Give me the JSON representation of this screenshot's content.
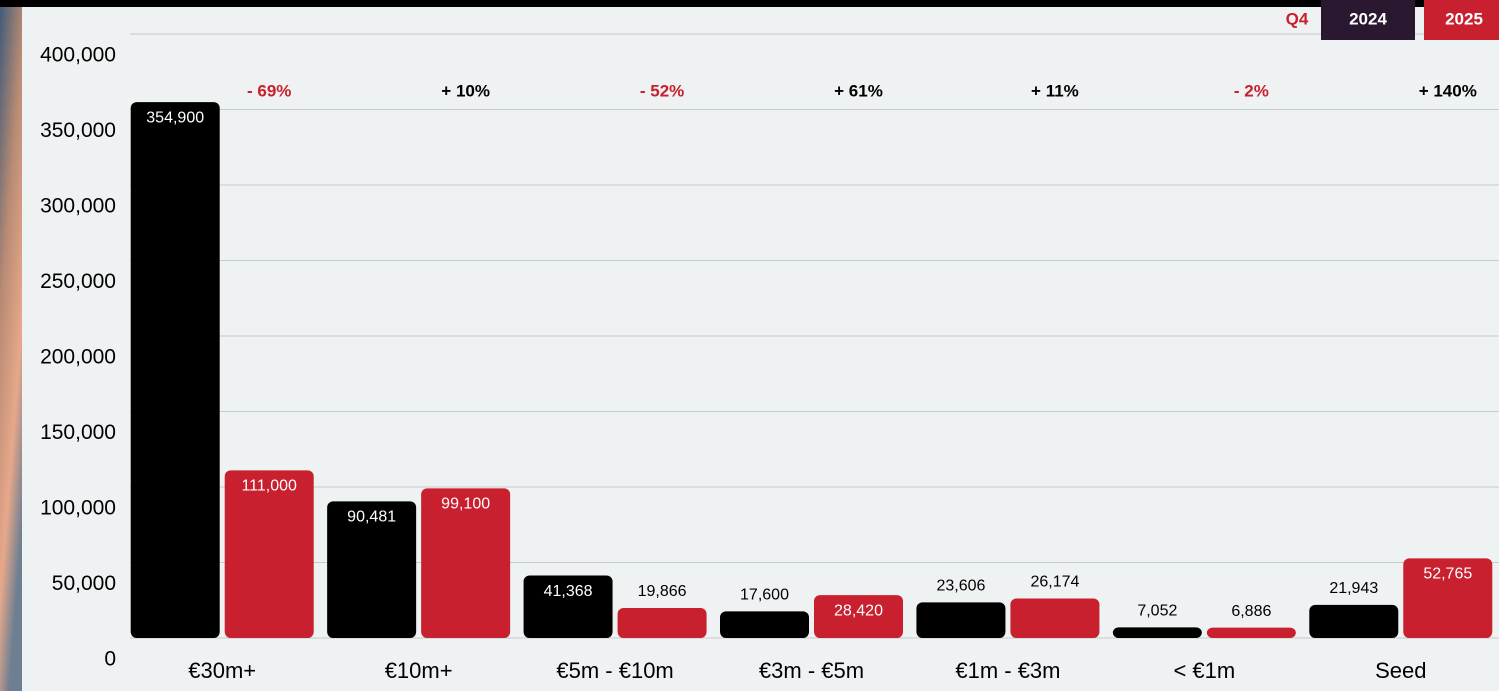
{
  "chart_data": {
    "type": "bar",
    "categories": [
      "€30m+",
      "€10m+",
      "€5m - €10m",
      "€3m - €5m",
      "€1m - €3m",
      "< €1m",
      "Seed"
    ],
    "series": [
      {
        "name": "2024",
        "color": "#000000",
        "values": [
          354900,
          90481,
          41368,
          17600,
          23606,
          7052,
          21943
        ],
        "value_labels": [
          "354,900",
          "90,481",
          "41,368",
          "17,600",
          "23,606",
          "7,052",
          "21,943"
        ]
      },
      {
        "name": "2025",
        "color": "#c8202f",
        "values": [
          111000,
          99100,
          19866,
          28420,
          26174,
          6886,
          52765
        ],
        "value_labels": [
          "111,000",
          "99,100",
          "19,866",
          "28,420",
          "26,174",
          "6,886",
          "52,765"
        ]
      }
    ],
    "changes": [
      "- 69%",
      "+ 10%",
      "- 52%",
      "+ 61%",
      "+ 11%",
      "- 2%",
      "+ 140%"
    ],
    "legend_title": "Q4",
    "ylim": [
      0,
      400000
    ],
    "yticks": [
      0,
      {
        "value": 50000,
        "label": "50,000"
      },
      {
        "value": 100000,
        "label": "100,000"
      },
      {
        "value": 150000,
        "label": "150,000"
      },
      {
        "value": 200000,
        "label": "200,000"
      },
      {
        "value": 250000,
        "label": "250,000"
      },
      {
        "value": 300000,
        "label": "300,000"
      },
      {
        "value": 350000,
        "label": "350,000"
      },
      {
        "value": 400000,
        "label": "400,000"
      }
    ],
    "grid": true
  }
}
